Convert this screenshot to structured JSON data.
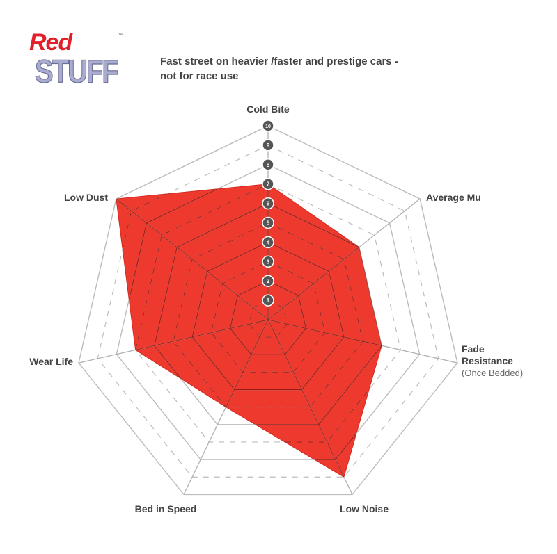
{
  "logo": {
    "line1": "Red",
    "line2": "STUFF",
    "tm": "™"
  },
  "subtitle": {
    "line1": "Fast street on heavier /faster and prestige cars -",
    "line2": "not for race use"
  },
  "chart_data": {
    "type": "radar",
    "axes": [
      "Cold Bite",
      "Average Mu",
      "Fade Resistance",
      "Low Noise",
      "Bed in Speed",
      "Wear Life",
      "Low Dust"
    ],
    "axis_sublabels": {
      "Fade Resistance": "(Once Bedded)"
    },
    "values": [
      7,
      6,
      6,
      9,
      5,
      7,
      10
    ],
    "range": [
      0,
      10
    ],
    "tick_labels": [
      "1",
      "2",
      "3",
      "4",
      "5",
      "6",
      "7",
      "8",
      "9",
      "10"
    ],
    "fill_color": "#ee3a2e",
    "grid_color": "#b0b0b0"
  }
}
